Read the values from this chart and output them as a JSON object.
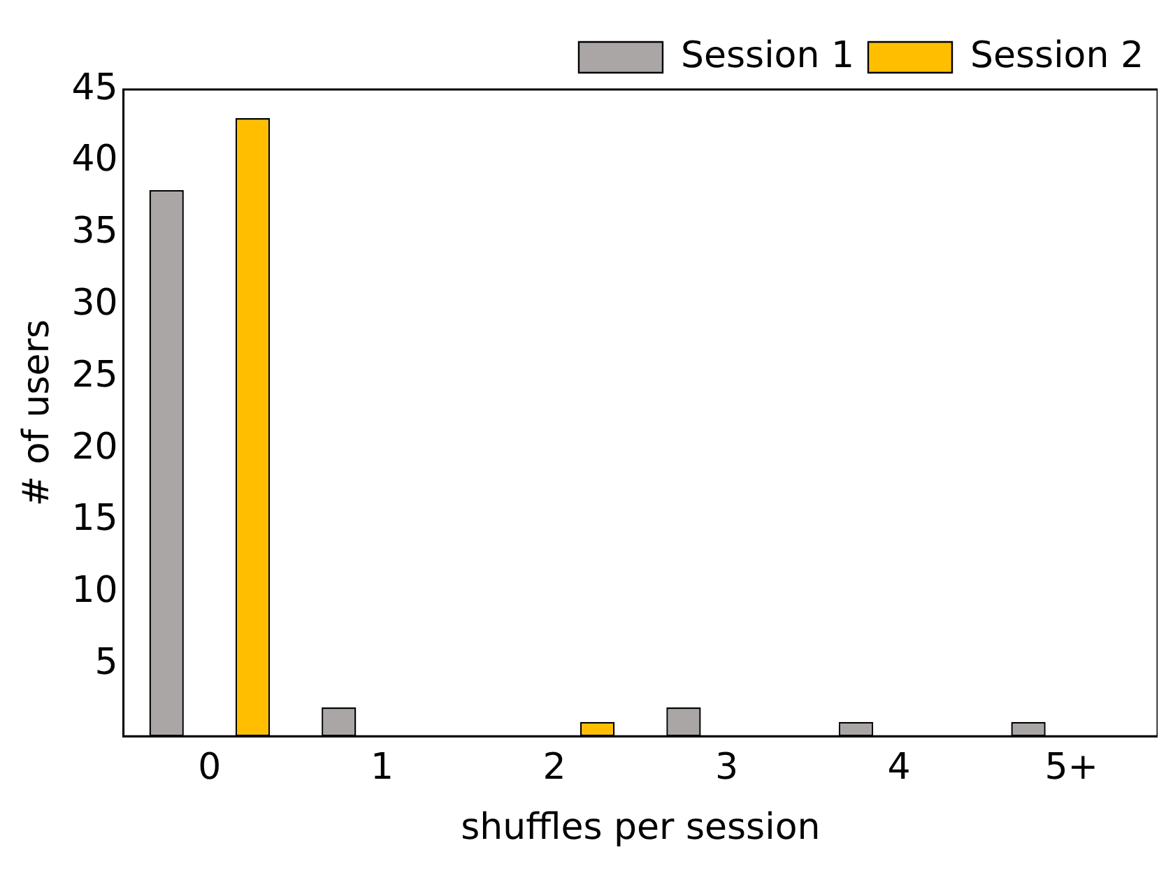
{
  "chart_data": {
    "type": "bar",
    "xlabel": "shuffles per session",
    "ylabel": "# of users",
    "categories": [
      "0",
      "1",
      "2",
      "3",
      "4",
      "5+"
    ],
    "series": [
      {
        "name": "Session 1",
        "color": "#aaa6a6",
        "values": [
          38,
          2,
          0,
          2,
          1,
          1
        ]
      },
      {
        "name": "Session 2",
        "color": "#ffbf00",
        "values": [
          43,
          0,
          1,
          0,
          0,
          0
        ]
      }
    ],
    "ylim": [
      0,
      45
    ],
    "yticks": [
      5,
      10,
      15,
      20,
      25,
      30,
      35,
      40,
      45
    ],
    "grid": false,
    "legend": "top right"
  }
}
